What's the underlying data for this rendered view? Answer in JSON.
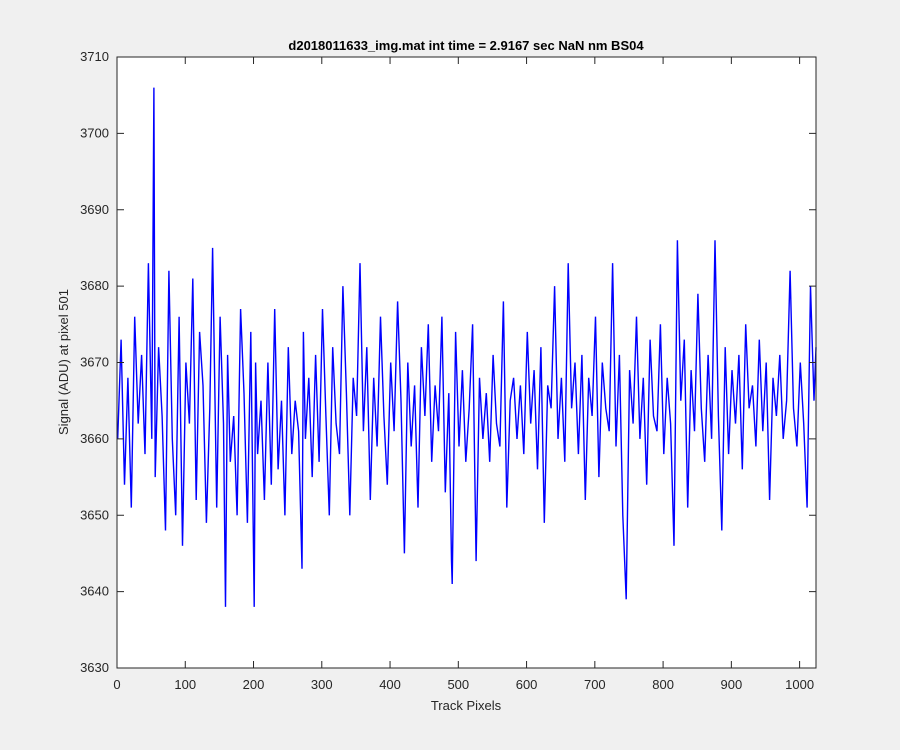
{
  "chart_data": {
    "type": "line",
    "title": "d2018011633_img.mat int time = 2.9167 sec  NaN nm BS04",
    "xlabel": "Track Pixels",
    "ylabel": "Signal (ADU) at pixel 501",
    "xlim": [
      0,
      1024
    ],
    "ylim": [
      3630,
      3710
    ],
    "xticks": [
      0,
      100,
      200,
      300,
      400,
      500,
      600,
      700,
      800,
      900,
      1000
    ],
    "yticks": [
      3630,
      3640,
      3650,
      3660,
      3670,
      3680,
      3690,
      3700,
      3710
    ],
    "grid": false,
    "series": [
      {
        "color": "#0000ff",
        "x": [
          1,
          6,
          11,
          16,
          21,
          26,
          31,
          36,
          41,
          46,
          51,
          54,
          56,
          61,
          66,
          71,
          76,
          81,
          86,
          91,
          96,
          101,
          106,
          111,
          116,
          121,
          126,
          131,
          136,
          140,
          146,
          151,
          156,
          159,
          162,
          166,
          171,
          176,
          181,
          186,
          191,
          196,
          201,
          203,
          206,
          211,
          216,
          221,
          226,
          231,
          236,
          241,
          246,
          251,
          256,
          261,
          266,
          271,
          273,
          276,
          281,
          286,
          291,
          296,
          301,
          306,
          311,
          316,
          321,
          326,
          331,
          336,
          341,
          346,
          351,
          356,
          361,
          366,
          371,
          376,
          381,
          386,
          391,
          396,
          401,
          406,
          411,
          416,
          421,
          426,
          431,
          436,
          441,
          446,
          451,
          456,
          461,
          466,
          471,
          476,
          481,
          486,
          490,
          491,
          496,
          501,
          506,
          511,
          516,
          521,
          526,
          531,
          536,
          541,
          546,
          551,
          556,
          561,
          566,
          571,
          576,
          581,
          586,
          591,
          596,
          601,
          606,
          611,
          616,
          621,
          626,
          631,
          636,
          641,
          646,
          651,
          656,
          661,
          666,
          671,
          676,
          681,
          686,
          691,
          696,
          701,
          706,
          711,
          716,
          721,
          726,
          731,
          736,
          741,
          746,
          751,
          756,
          761,
          766,
          771,
          776,
          781,
          786,
          791,
          796,
          801,
          806,
          811,
          816,
          821,
          826,
          831,
          836,
          841,
          846,
          851,
          856,
          861,
          866,
          871,
          876,
          881,
          886,
          891,
          896,
          901,
          906,
          911,
          916,
          921,
          926,
          931,
          936,
          941,
          946,
          951,
          956,
          961,
          966,
          971,
          976,
          981,
          986,
          991,
          996,
          1001,
          1006,
          1011,
          1016,
          1021,
          1024
        ],
        "y": [
          3660,
          3673,
          3654,
          3668,
          3651,
          3676,
          3662,
          3671,
          3658,
          3683,
          3660,
          3706,
          3655,
          3672,
          3663,
          3648,
          3682,
          3660,
          3650,
          3676,
          3646,
          3670,
          3662,
          3681,
          3652,
          3674,
          3667,
          3649,
          3664,
          3685,
          3651,
          3676,
          3662,
          3638,
          3671,
          3657,
          3663,
          3650,
          3677,
          3666,
          3649,
          3674,
          3638,
          3670,
          3658,
          3665,
          3652,
          3670,
          3654,
          3677,
          3656,
          3665,
          3650,
          3672,
          3658,
          3665,
          3661,
          3643,
          3674,
          3660,
          3668,
          3655,
          3671,
          3657,
          3677,
          3663,
          3650,
          3672,
          3662,
          3658,
          3680,
          3666,
          3650,
          3668,
          3663,
          3683,
          3661,
          3672,
          3652,
          3668,
          3659,
          3676,
          3663,
          3654,
          3670,
          3661,
          3678,
          3665,
          3645,
          3670,
          3659,
          3667,
          3651,
          3672,
          3663,
          3675,
          3657,
          3667,
          3661,
          3676,
          3653,
          3666,
          3644,
          3641,
          3674,
          3659,
          3669,
          3657,
          3664,
          3675,
          3644,
          3668,
          3660,
          3666,
          3657,
          3671,
          3662,
          3659,
          3678,
          3651,
          3665,
          3668,
          3660,
          3667,
          3658,
          3674,
          3662,
          3669,
          3656,
          3672,
          3649,
          3667,
          3664,
          3680,
          3660,
          3668,
          3657,
          3683,
          3664,
          3670,
          3658,
          3671,
          3652,
          3668,
          3663,
          3676,
          3655,
          3670,
          3664,
          3661,
          3683,
          3659,
          3671,
          3650,
          3639,
          3669,
          3662,
          3676,
          3660,
          3668,
          3654,
          3673,
          3663,
          3661,
          3675,
          3658,
          3668,
          3662,
          3646,
          3686,
          3665,
          3673,
          3651,
          3669,
          3661,
          3679,
          3664,
          3657,
          3671,
          3660,
          3686,
          3663,
          3648,
          3672,
          3658,
          3669,
          3662,
          3671,
          3656,
          3675,
          3664,
          3667,
          3659,
          3673,
          3661,
          3670,
          3652,
          3668,
          3663,
          3671,
          3660,
          3665,
          3682,
          3664,
          3659,
          3670,
          3662,
          3651,
          3680,
          3665,
          3672
        ]
      }
    ]
  }
}
